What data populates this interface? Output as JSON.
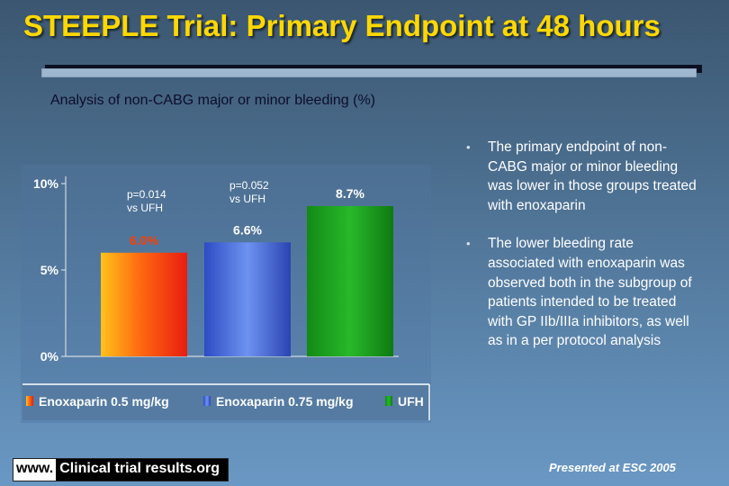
{
  "slide": {
    "title": "STEEPLE Trial: Primary Endpoint at 48 hours",
    "subtitle": "Analysis of non-CABG major or minor bleeding (%)"
  },
  "chart_data": {
    "type": "bar",
    "categories": [
      "Enoxaparin 0.5 mg/kg",
      "Enoxaparin 0.75 mg/kg",
      "UFH"
    ],
    "values": [
      6.0,
      6.6,
      8.7
    ],
    "value_labels": [
      "6.0%",
      "6.6%",
      "8.7%"
    ],
    "ylim": [
      0,
      10
    ],
    "yticks": [
      0,
      5,
      10
    ],
    "ytick_labels": [
      "0%",
      "5%",
      "10%"
    ],
    "annotations": [
      {
        "text": "p=0.014 vs UFH",
        "category": "Enoxaparin 0.5 mg/kg"
      },
      {
        "text": "p=0.052 vs UFH",
        "category": "Enoxaparin 0.75 mg/kg"
      }
    ],
    "legend": {
      "position": "bottom"
    },
    "colors": [
      "#f25a12",
      "#4a6fd8",
      "#1a9a1a"
    ],
    "grid": false
  },
  "bullets": [
    "The primary endpoint of non-CABG major or minor bleeding was lower in those groups treated with enoxaparin",
    "The lower bleeding rate associated with enoxaparin was observed both in the subgroup of patients intended to be treated with GP IIb/IIIa inhibitors, as well as in a per protocol analysis"
  ],
  "footer": {
    "logo_www": "www.",
    "logo_site": "Clinical trial results.org",
    "presented": "Presented at ESC 2005"
  }
}
